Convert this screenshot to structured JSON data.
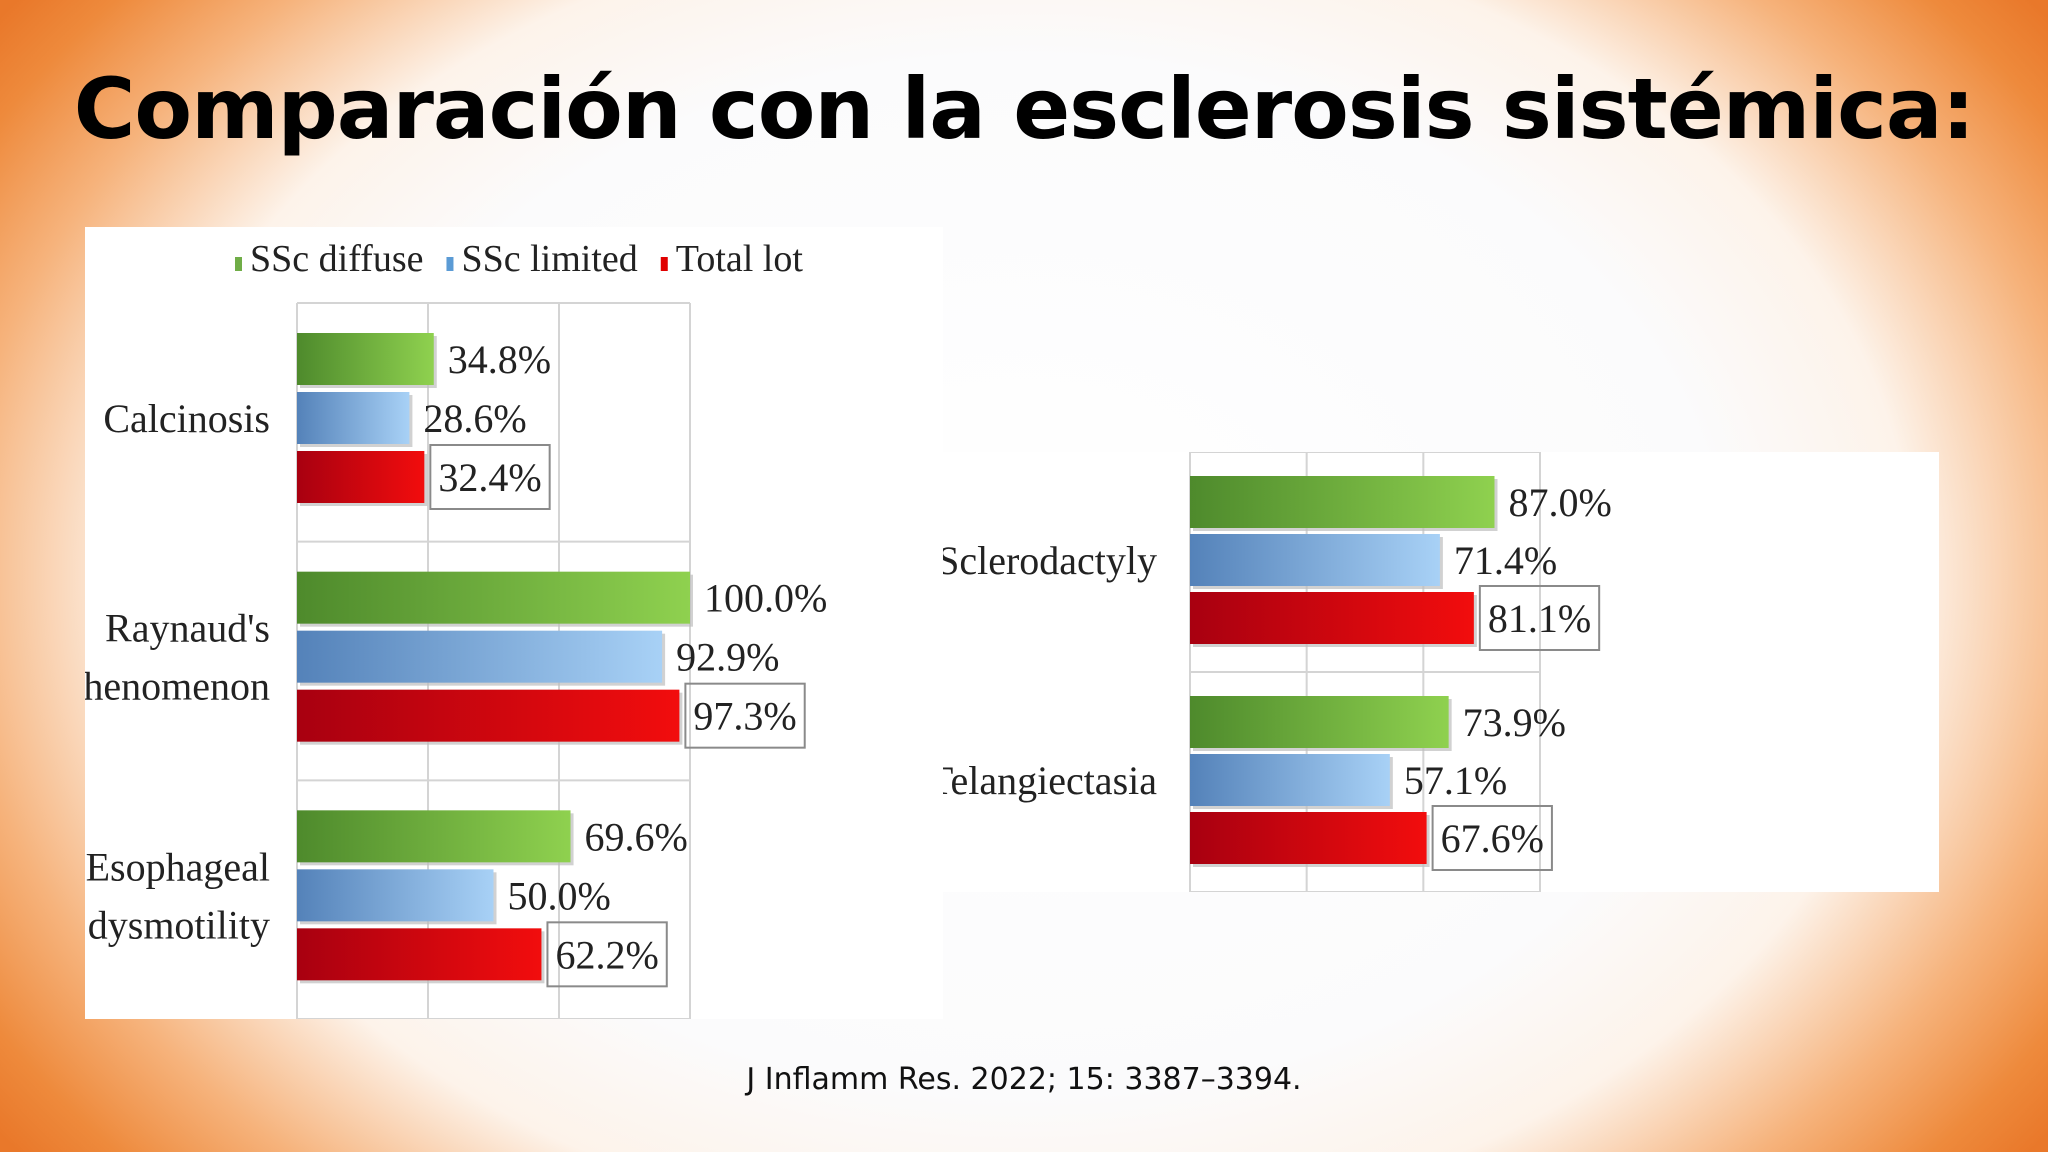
{
  "slide": {
    "title": "Comparación con la esclerosis sistémica:",
    "citation": "J Inflamm Res. 2022; 15: 3387–3394."
  },
  "series_colors": {
    "SSc diffuse": [
      "#4e8a2c",
      "#8fd14f"
    ],
    "SSc limited": [
      "#5482b9",
      "#a8d1f6"
    ],
    "Total lot": [
      "#a80010",
      "#f20d0d"
    ]
  },
  "legend_swatches": {
    "SSc diffuse": "#70ad47",
    "SSc limited": "#5b9bd5",
    "Total lot": "#e00000"
  },
  "chart_data": [
    {
      "type": "bar",
      "orientation": "horizontal",
      "categories": [
        "Calcinosis",
        "Raynaud's phenomenon",
        "Esophageal dysmotility"
      ],
      "series": [
        {
          "name": "SSc diffuse",
          "values": [
            34.8,
            100.0,
            69.6
          ]
        },
        {
          "name": "SSc limited",
          "values": [
            28.6,
            92.9,
            50.0
          ]
        },
        {
          "name": "Total lot",
          "values": [
            32.4,
            97.3,
            62.2
          ]
        }
      ],
      "labels": [
        [
          "34.8%",
          "28.6%",
          "32.4%"
        ],
        [
          "100.0%",
          "92.9%",
          "97.3%"
        ],
        [
          "69.6%",
          "50.0%",
          "62.2%"
        ]
      ],
      "xlim": [
        0,
        100
      ],
      "grid": true,
      "legend": "top"
    },
    {
      "type": "bar",
      "orientation": "horizontal",
      "categories": [
        "Sclerodactyly",
        "Telangiectasia"
      ],
      "series": [
        {
          "name": "SSc diffuse",
          "values": [
            87.0,
            73.9
          ]
        },
        {
          "name": "SSc limited",
          "values": [
            71.4,
            57.1
          ]
        },
        {
          "name": "Total lot",
          "values": [
            81.1,
            67.6
          ]
        }
      ],
      "labels": [
        [
          "87.0%",
          "71.4%",
          "81.1%"
        ],
        [
          "73.9%",
          "57.1%",
          "67.6%"
        ]
      ],
      "xlim": [
        0,
        100
      ],
      "grid": true,
      "legend": "none"
    }
  ]
}
